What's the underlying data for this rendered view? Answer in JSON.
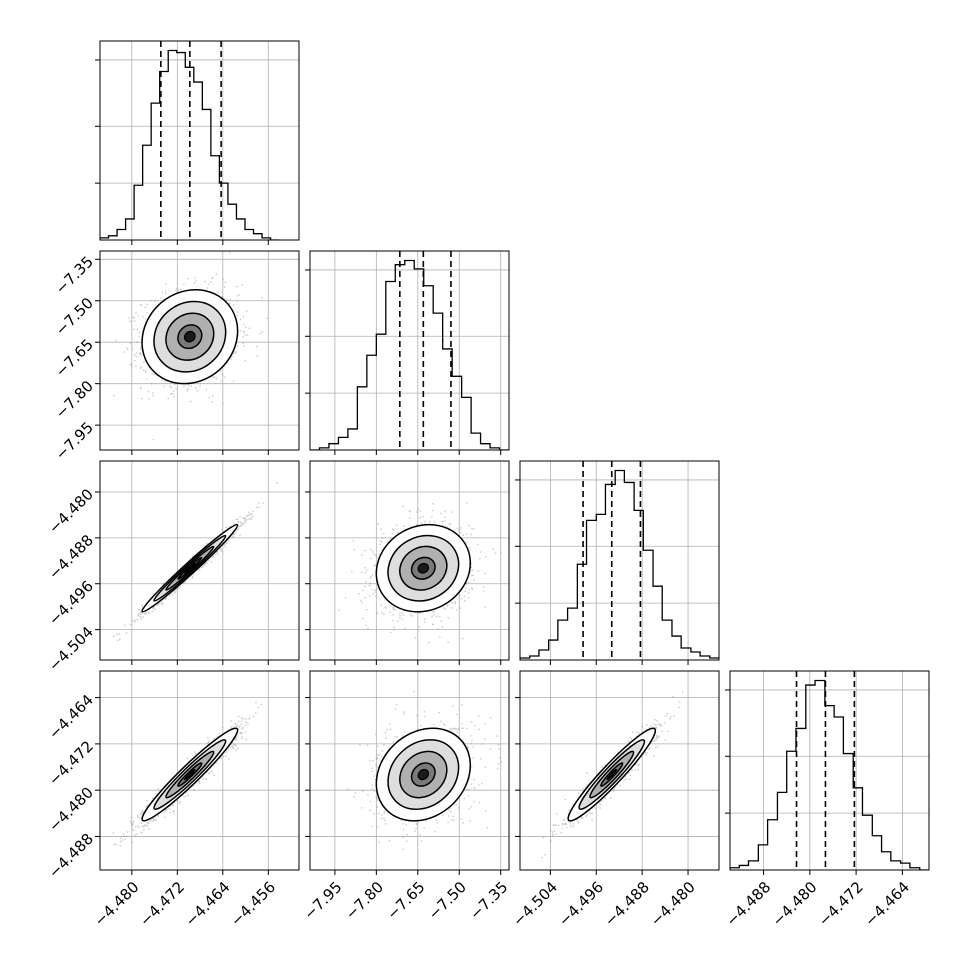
{
  "chart_data": {
    "type": "corner",
    "parameters": [
      {
        "ticks": [
          "−4.480",
          "−4.472",
          "−4.464",
          "−4.456"
        ],
        "tick_values": [
          -4.48,
          -4.472,
          -4.464,
          -4.456
        ],
        "range": [
          -4.4856,
          -4.4506
        ],
        "quantiles": [
          -4.4749,
          -4.4698,
          -4.4643
        ],
        "histogram": {
          "bin_edges": [
            -4.4856,
            -4.4841,
            -4.4826,
            -4.4811,
            -4.4796,
            -4.4781,
            -4.4766,
            -4.4751,
            -4.4736,
            -4.4721,
            -4.4706,
            -4.4691,
            -4.4676,
            -4.4661,
            -4.4646,
            -4.4631,
            -4.4616,
            -4.4601,
            -4.4586,
            -4.4571,
            -4.4556,
            -4.4541
          ],
          "counts": [
            1,
            2,
            5,
            10,
            26,
            45,
            65,
            80,
            90,
            89,
            82,
            75,
            62,
            40,
            27,
            17,
            10,
            5,
            3,
            1,
            0
          ]
        }
      },
      {
        "ticks": [
          "−7.95",
          "−7.80",
          "−7.65",
          "−7.50",
          "−7.35"
        ],
        "tick_values": [
          -7.95,
          -7.8,
          -7.65,
          -7.5,
          -7.35
        ],
        "range": [
          -8.04,
          -7.32
        ],
        "quantiles": [
          -7.715,
          -7.63,
          -7.53
        ],
        "histogram": {
          "bin_edges": [
            -8.04,
            -8.0057,
            -7.9714,
            -7.9371,
            -7.9029,
            -7.8686,
            -7.8343,
            -7.8,
            -7.7657,
            -7.7314,
            -7.6971,
            -7.6629,
            -7.6286,
            -7.5943,
            -7.56,
            -7.5257,
            -7.4914,
            -7.4571,
            -7.4229,
            -7.3886,
            -7.3543,
            -7.32
          ],
          "counts": [
            0,
            1,
            3,
            6,
            10,
            30,
            45,
            55,
            80,
            88,
            90,
            86,
            78,
            65,
            48,
            35,
            25,
            8,
            3,
            1,
            0
          ]
        }
      },
      {
        "ticks": [
          "−4.504",
          "−4.496",
          "−4.488",
          "−4.480"
        ],
        "tick_values": [
          -4.504,
          -4.496,
          -4.488,
          -4.48
        ],
        "range": [
          -4.5093,
          -4.4746
        ],
        "quantiles": [
          -4.4983,
          -4.4933,
          -4.4883
        ],
        "histogram": {
          "bin_edges": [
            -4.5093,
            -4.5076,
            -4.506,
            -4.5043,
            -4.5027,
            -4.501,
            -4.4993,
            -4.4977,
            -4.496,
            -4.4944,
            -4.4927,
            -4.4911,
            -4.4894,
            -4.4878,
            -4.4861,
            -4.4845,
            -4.4828,
            -4.4812,
            -4.4795,
            -4.4779,
            -4.4762,
            -4.4746
          ],
          "counts": [
            1,
            2,
            5,
            10,
            20,
            26,
            48,
            70,
            73,
            88,
            95,
            89,
            75,
            55,
            37,
            20,
            12,
            6,
            4,
            2,
            1
          ]
        }
      },
      {
        "ticks": [
          "−4.488",
          "−4.480",
          "−4.472",
          "−4.464"
        ],
        "tick_values": [
          -4.488,
          -4.48,
          -4.472,
          -4.464
        ],
        "range": [
          -4.4938,
          -4.4594
        ],
        "quantiles": [
          -4.4823,
          -4.4773,
          -4.4723
        ],
        "histogram": {
          "bin_edges": [
            -4.4938,
            -4.4922,
            -4.4906,
            -4.4889,
            -4.4873,
            -4.4856,
            -4.484,
            -4.4824,
            -4.4807,
            -4.4791,
            -4.4774,
            -4.4758,
            -4.4742,
            -4.4725,
            -4.4709,
            -4.4692,
            -4.4676,
            -4.466,
            -4.4643,
            -4.4627,
            -4.461,
            -4.4594
          ],
          "counts": [
            1,
            2,
            4,
            11,
            22,
            34,
            52,
            62,
            81,
            83,
            72,
            67,
            51,
            36,
            24,
            15,
            8,
            4,
            3,
            1,
            0
          ]
        }
      }
    ],
    "pairs": [
      {
        "row": 1,
        "col": 0,
        "center": [
          -4.4698,
          -7.63
        ],
        "sigma": [
          0.0042,
          0.085
        ],
        "rho": 0.12
      },
      {
        "row": 2,
        "col": 0,
        "center": [
          -4.4698,
          -4.4933
        ],
        "sigma": [
          0.0042,
          0.0038
        ],
        "rho": 0.985
      },
      {
        "row": 2,
        "col": 1,
        "center": [
          -7.63,
          -4.4933
        ],
        "sigma": [
          0.085,
          0.0038
        ],
        "rho": 0.12
      },
      {
        "row": 3,
        "col": 0,
        "center": [
          -4.4698,
          -4.4773
        ],
        "sigma": [
          0.0042,
          0.004
        ],
        "rho": 0.96
      },
      {
        "row": 3,
        "col": 1,
        "center": [
          -7.63,
          -4.4773
        ],
        "sigma": [
          0.085,
          0.004
        ],
        "rho": 0.2
      },
      {
        "row": 3,
        "col": 2,
        "center": [
          -4.4933,
          -4.4773
        ],
        "sigma": [
          0.0038,
          0.004
        ],
        "rho": 0.95
      }
    ],
    "contour_levels_sigma": [
      0.5,
      1.0,
      1.5,
      2.0
    ],
    "grid": true,
    "colors": {
      "line": "#000000",
      "points": "#8a8a8a",
      "grid": "#b0b0b0"
    }
  }
}
